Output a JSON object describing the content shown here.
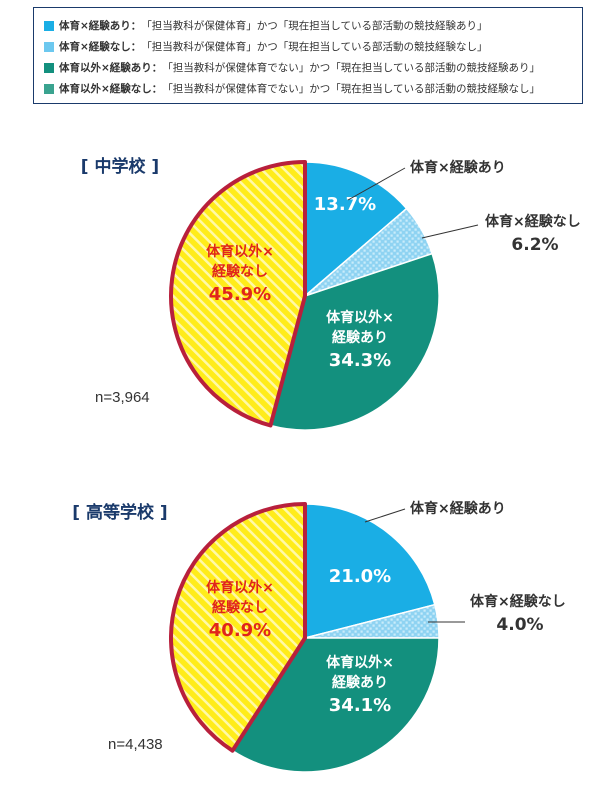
{
  "legend": [
    {
      "key": "体育×経験あり：",
      "desc": "「担当教科が保健体育」かつ「現在担当している部活動の競技経験あり」",
      "color": "#1aaee5"
    },
    {
      "key": "体育×経験なし：",
      "desc": "「担当教科が保健体育」かつ「現在担当している部活動の競技経験なし」",
      "color": "#6cc8ef"
    },
    {
      "key": "体育以外×経験あり：",
      "desc": "「担当教科が保健体育でない」かつ「現在担当している部活動の競技経験あり」",
      "color": "#13907e"
    },
    {
      "key": "体育以外×経験なし：",
      "desc": "「担当教科が保健体育でない」かつ「現在担当している部活動の競技経験なし」",
      "color": "#3aa38f"
    }
  ],
  "chart_data": [
    {
      "type": "pie",
      "title": "中学校",
      "n_label": "n=3,964",
      "categories": [
        "体育×経験あり",
        "体育×経験なし",
        "体育以外×経験あり",
        "体育以外×経験なし"
      ],
      "values": [
        13.7,
        6.2,
        34.3,
        45.9
      ],
      "value_labels": [
        "13.7%",
        "6.2%",
        "34.3%",
        "45.9%"
      ],
      "label_line1": [
        "",
        "",
        "体育以外×",
        "体育以外×"
      ],
      "label_line2": [
        "",
        "",
        "経験あり",
        "経験なし"
      ],
      "outside_labels": [
        "体育×経験あり",
        "体育×経験なし"
      ]
    },
    {
      "type": "pie",
      "title": "高等学校",
      "n_label": "n=4,438",
      "categories": [
        "体育×経験あり",
        "体育×経験なし",
        "体育以外×経験あり",
        "体育以外×経験なし"
      ],
      "values": [
        21.0,
        4.0,
        34.1,
        40.9
      ],
      "value_labels": [
        "21.0%",
        "4.0%",
        "34.1%",
        "40.9%"
      ],
      "label_line1": [
        "",
        "",
        "体育以外×",
        "体育以外×"
      ],
      "label_line2": [
        "",
        "",
        "経験あり",
        "経験なし"
      ],
      "outside_labels": [
        "体育×経験あり",
        "体育×経験なし"
      ]
    }
  ],
  "colors": {
    "p_yes": "#1aaee5",
    "p_no": "#8fd3f2",
    "p_no_dot": "#c9ecfa",
    "o_yes": "#13907e",
    "o_no": "#ffec1a",
    "o_no_stripe": "#fff9a8",
    "o_no_border": "#b8203c",
    "title": "#1a3a6b",
    "accent_red": "#e0251b"
  }
}
